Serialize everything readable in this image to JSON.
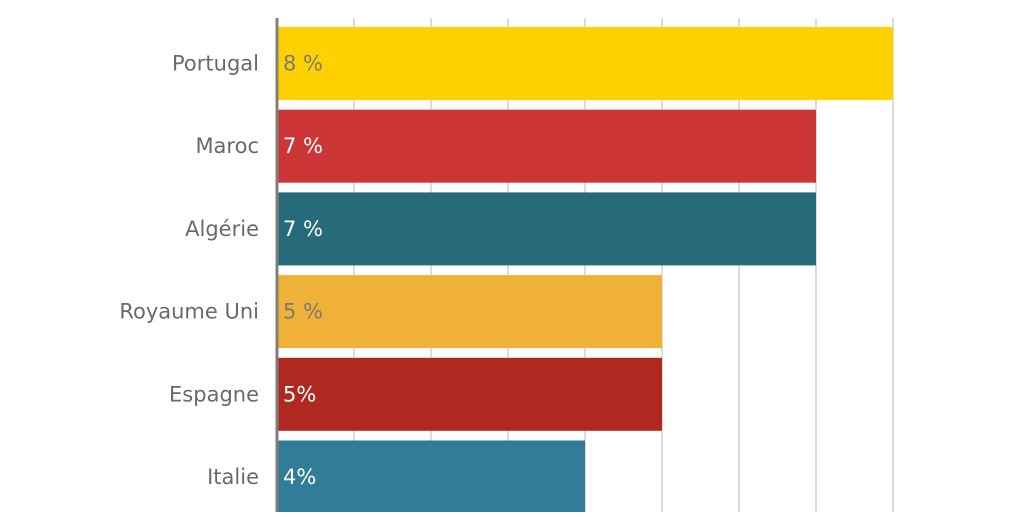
{
  "chart_data": {
    "type": "bar",
    "orientation": "horizontal",
    "categories": [
      "Portugal",
      "Maroc",
      "Algérie",
      "Royaume Uni",
      "Espagne",
      "Italie"
    ],
    "values": [
      8,
      7,
      7,
      5,
      5,
      4
    ],
    "value_labels": [
      "8 %",
      "7 %",
      "7 %",
      "5 %",
      "5%",
      "4%"
    ],
    "bar_colors": [
      "#FFD100",
      "#CC3636",
      "#276A7A",
      "#F0B138",
      "#AF2920",
      "#317C98"
    ],
    "label_colors": [
      "#7a7a7a",
      "#ffffff",
      "#ffffff",
      "#7a7a7a",
      "#ffffff",
      "#ffffff"
    ],
    "xlim": [
      0,
      8
    ],
    "x_gridline_step": 1,
    "grid": true,
    "title": "",
    "xlabel": "",
    "ylabel": ""
  }
}
